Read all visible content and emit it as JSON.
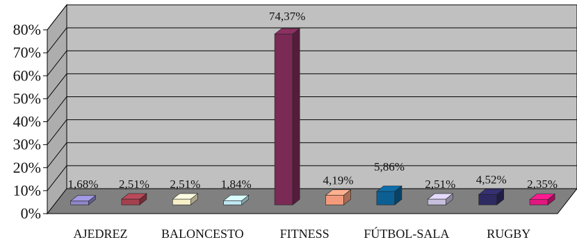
{
  "chart_data": {
    "type": "bar",
    "title": "",
    "xlabel": "",
    "ylabel": "",
    "ylim": [
      0,
      80
    ],
    "yticks": [
      "0%",
      "10%",
      "20%",
      "30%",
      "40%",
      "50%",
      "60%",
      "70%",
      "80%"
    ],
    "grid": true,
    "three_d": true,
    "categories": [
      "AJEDREZ",
      "",
      "BALONCESTO",
      "",
      "FITNESS",
      "",
      "FÚTBOL-SALA",
      "",
      "RUGBY",
      ""
    ],
    "values": [
      1.68,
      2.51,
      2.51,
      1.84,
      74.37,
      4.19,
      5.86,
      2.51,
      4.52,
      2.35
    ],
    "value_labels": [
      "1,68%",
      "2,51%",
      "2,51%",
      "1,84%",
      "74,37%",
      "4,19%",
      "5,86%",
      "2,51%",
      "4,52%",
      "2,35%"
    ],
    "colors": [
      "#8E86C8",
      "#A3404E",
      "#F6EFC6",
      "#BEE6F2",
      "#7A2A55",
      "#F39A7C",
      "#0B5F93",
      "#C5BEDC",
      "#2D2A62",
      "#E0177F"
    ],
    "plot_bg": "#C0C0C0",
    "floor_color": "#808080"
  }
}
